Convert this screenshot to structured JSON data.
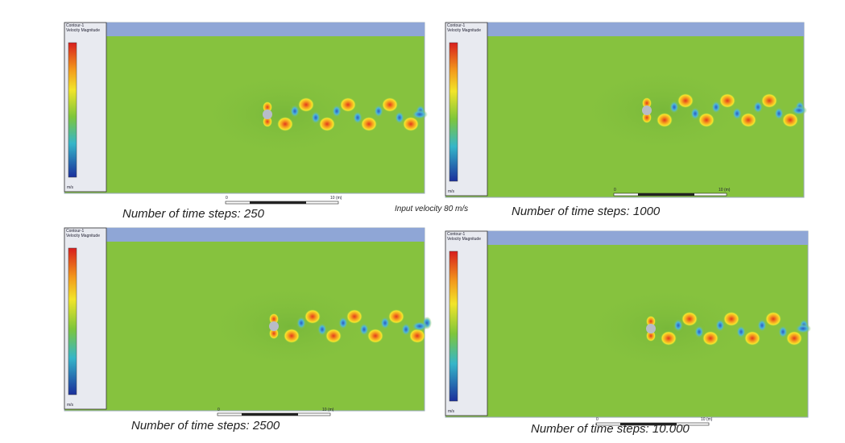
{
  "panels": [
    {
      "header": [
        "Contour-1",
        "Velocity Magnitude"
      ],
      "unit": "m/s",
      "scale": [
        "0",
        "10 (m)"
      ],
      "caption": "Number of time steps: 250"
    },
    {
      "header": [
        "Contour-1",
        "Velocity Magnitude"
      ],
      "unit": "m/s",
      "scale": [
        "0",
        "10 (m)"
      ],
      "caption": "Number of time steps: 1000"
    },
    {
      "header": [
        "Contour-1",
        "Velocity Magnitude"
      ],
      "unit": "m/s",
      "scale": [
        "0",
        "10 (m)"
      ],
      "caption": "Number of time steps: 2500"
    },
    {
      "header": [
        "Contour-1",
        "Velocity Magnitude"
      ],
      "unit": "m/s",
      "scale": [
        "0",
        "10 (m)"
      ],
      "caption": "Number of time steps: 10.000"
    }
  ],
  "annotation": "Input velocity 80 m/s"
}
